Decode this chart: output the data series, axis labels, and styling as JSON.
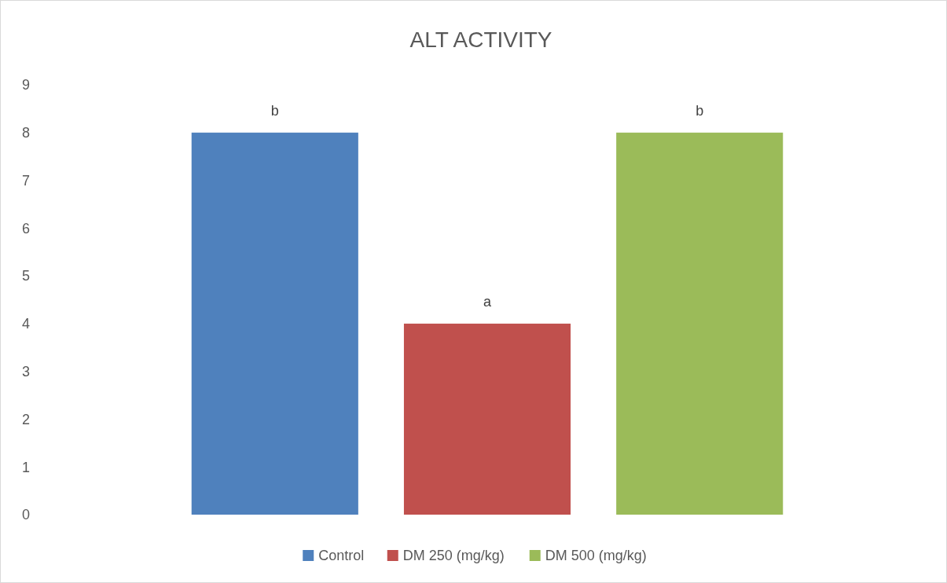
{
  "chart_data": {
    "type": "bar",
    "title": "ALT ACTIVITY",
    "categories": [
      null
    ],
    "series": [
      {
        "name": "Control",
        "color": "#4f81bd",
        "values": [
          8
        ]
      },
      {
        "name": "DM 250 (mg/kg)",
        "color": "#c0504d",
        "values": [
          4
        ]
      },
      {
        "name": "DM 500 (mg/kg)",
        "color": "#9bbb59",
        "values": [
          8
        ]
      }
    ],
    "ylim": [
      0,
      9
    ],
    "yticks": [
      0,
      1,
      2,
      3,
      4,
      5,
      6,
      7,
      8,
      9
    ],
    "grid": false,
    "legend": "bottom",
    "annotations": [
      {
        "text": "b",
        "y": 8
      },
      {
        "text": "a",
        "y": 4
      },
      {
        "text": "b",
        "y": 8
      }
    ]
  }
}
